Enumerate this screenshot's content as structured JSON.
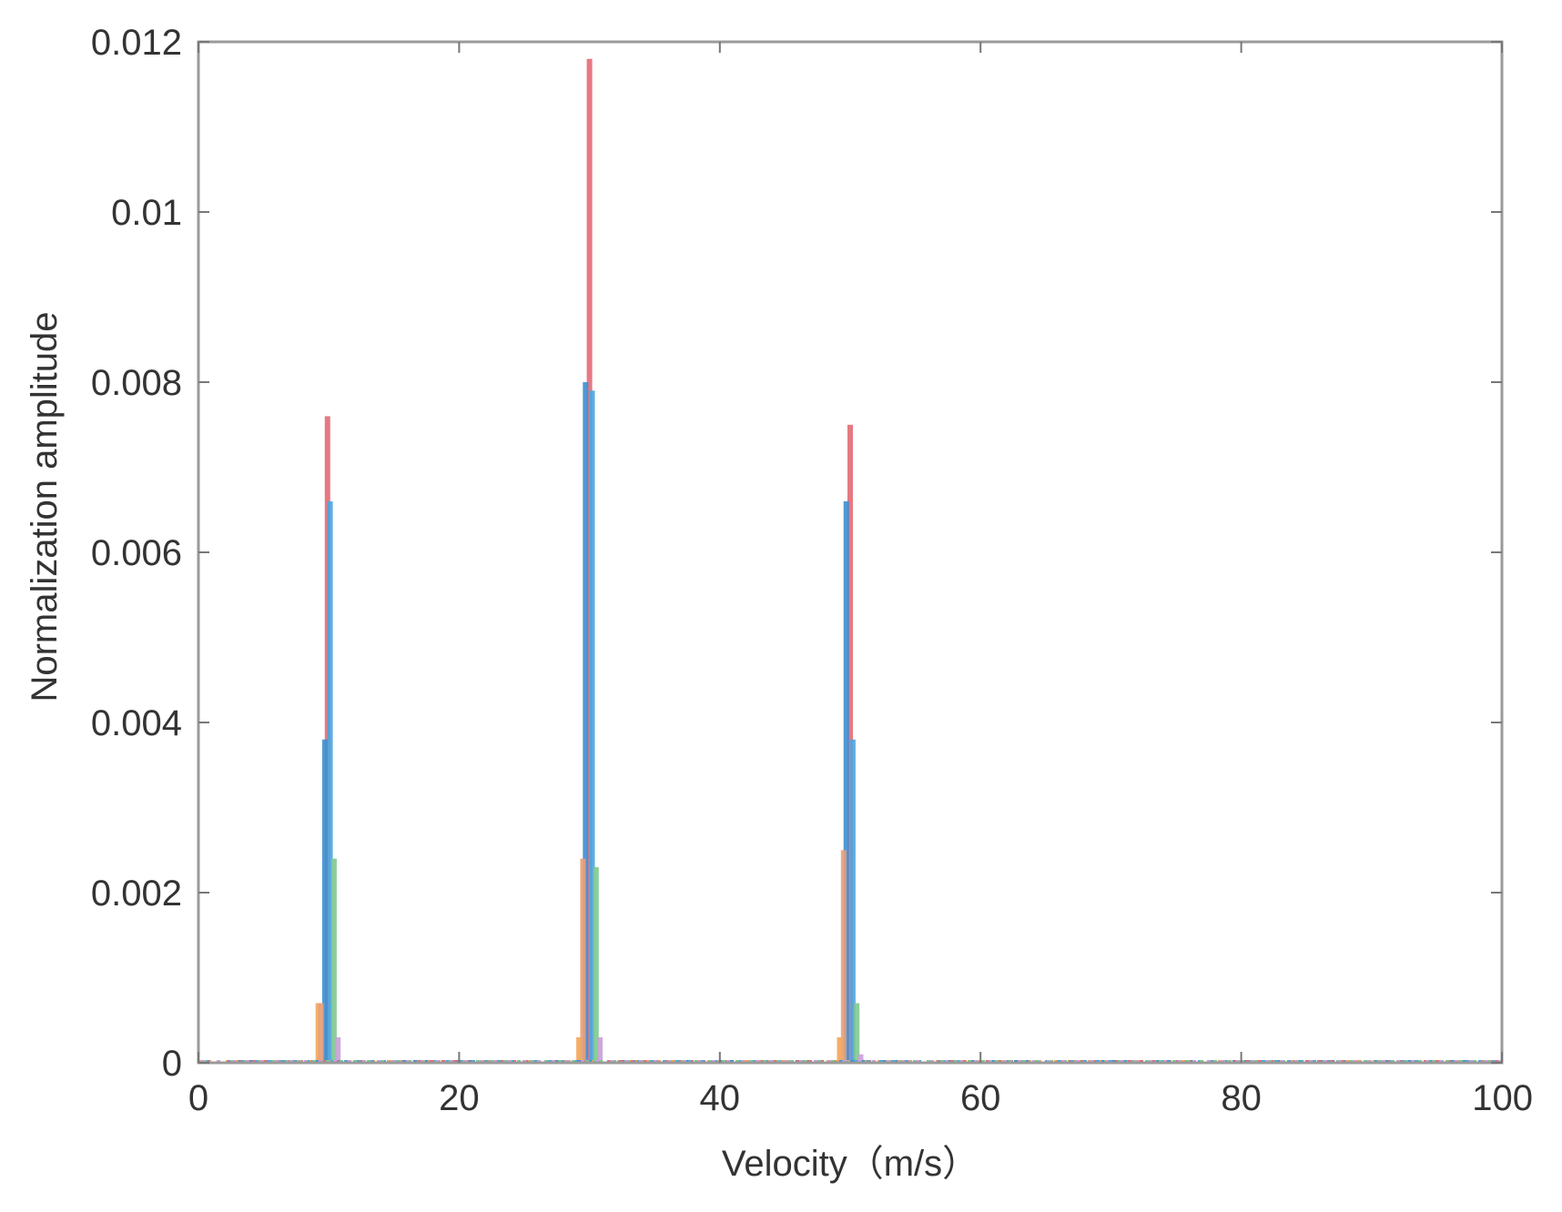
{
  "chart_data": {
    "type": "bar",
    "title": "",
    "xlabel": "Velocity（m/s）",
    "ylabel": "Normalization amplitude",
    "xlim": [
      0,
      100
    ],
    "ylim": [
      0,
      0.012
    ],
    "xticks": [
      0,
      20,
      40,
      60,
      80,
      100
    ],
    "xtick_labels": [
      "0",
      "20",
      "40",
      "60",
      "80",
      "100"
    ],
    "yticks": [
      0,
      0.002,
      0.004,
      0.006,
      0.008,
      0.01,
      0.012
    ],
    "ytick_labels": [
      "0",
      "0.002",
      "0.004",
      "0.006",
      "0.008",
      "0.01",
      "0.012"
    ],
    "grid": false,
    "legend": "none",
    "series": [
      {
        "color": "#f2a65a",
        "points": [
          {
            "x": 9.2,
            "y": 0.0007
          },
          {
            "x": 29.2,
            "y": 0.0003
          },
          {
            "x": 49.2,
            "y": 0.0003
          }
        ]
      },
      {
        "color": "#e8a07a",
        "points": [
          {
            "x": 9.4,
            "y": 0.0007
          },
          {
            "x": 29.5,
            "y": 0.0024
          },
          {
            "x": 49.5,
            "y": 0.0025
          }
        ]
      },
      {
        "color": "#3d8fd1",
        "points": [
          {
            "x": 9.7,
            "y": 0.0038
          },
          {
            "x": 29.7,
            "y": 0.008
          },
          {
            "x": 49.7,
            "y": 0.0066
          }
        ]
      },
      {
        "color": "#e26a75",
        "points": [
          {
            "x": 9.9,
            "y": 0.0076
          },
          {
            "x": 30.0,
            "y": 0.0118
          },
          {
            "x": 50.0,
            "y": 0.0075
          }
        ]
      },
      {
        "color": "#4aa6e0",
        "points": [
          {
            "x": 10.1,
            "y": 0.0066
          },
          {
            "x": 30.2,
            "y": 0.0079
          },
          {
            "x": 50.2,
            "y": 0.0038
          }
        ]
      },
      {
        "color": "#7fc98f",
        "points": [
          {
            "x": 10.4,
            "y": 0.0024
          },
          {
            "x": 30.5,
            "y": 0.0023
          },
          {
            "x": 50.5,
            "y": 0.0007
          }
        ]
      },
      {
        "color": "#c9a0d8",
        "points": [
          {
            "x": 10.7,
            "y": 0.0003
          },
          {
            "x": 30.8,
            "y": 0.0003
          },
          {
            "x": 50.8,
            "y": 0.0001
          }
        ]
      }
    ]
  }
}
